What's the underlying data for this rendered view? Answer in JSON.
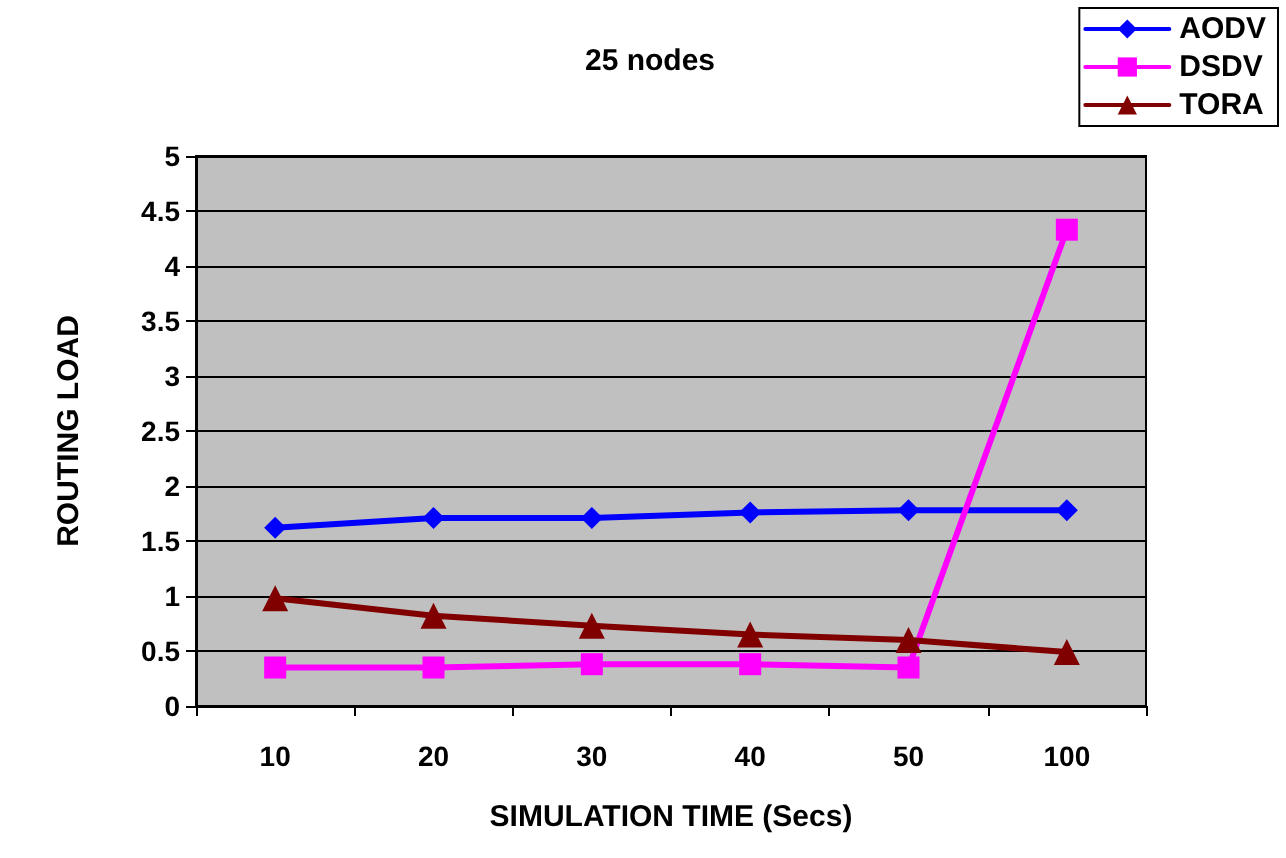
{
  "chart_data": {
    "type": "line",
    "title": "25 nodes",
    "xlabel": "SIMULATION TIME (Secs)",
    "ylabel": "ROUTING LOAD",
    "categories": [
      "10",
      "20",
      "30",
      "40",
      "50",
      "100"
    ],
    "series": [
      {
        "name": "AODV",
        "color": "#0000ff",
        "marker": "diamond",
        "values": [
          1.62,
          1.71,
          1.71,
          1.76,
          1.78,
          1.78
        ]
      },
      {
        "name": "DSDV",
        "color": "#ff00ff",
        "marker": "square",
        "values": [
          0.35,
          0.35,
          0.38,
          0.38,
          0.35,
          4.33
        ]
      },
      {
        "name": "TORA",
        "color": "#800000",
        "marker": "triangle",
        "values": [
          0.98,
          0.82,
          0.73,
          0.65,
          0.6,
          0.49
        ]
      }
    ],
    "ylim": [
      0,
      5
    ],
    "yticks": [
      0,
      0.5,
      1,
      1.5,
      2,
      2.5,
      3,
      3.5,
      4,
      4.5,
      5
    ],
    "grid": "y",
    "legend": "top right",
    "line_style": "solid"
  }
}
